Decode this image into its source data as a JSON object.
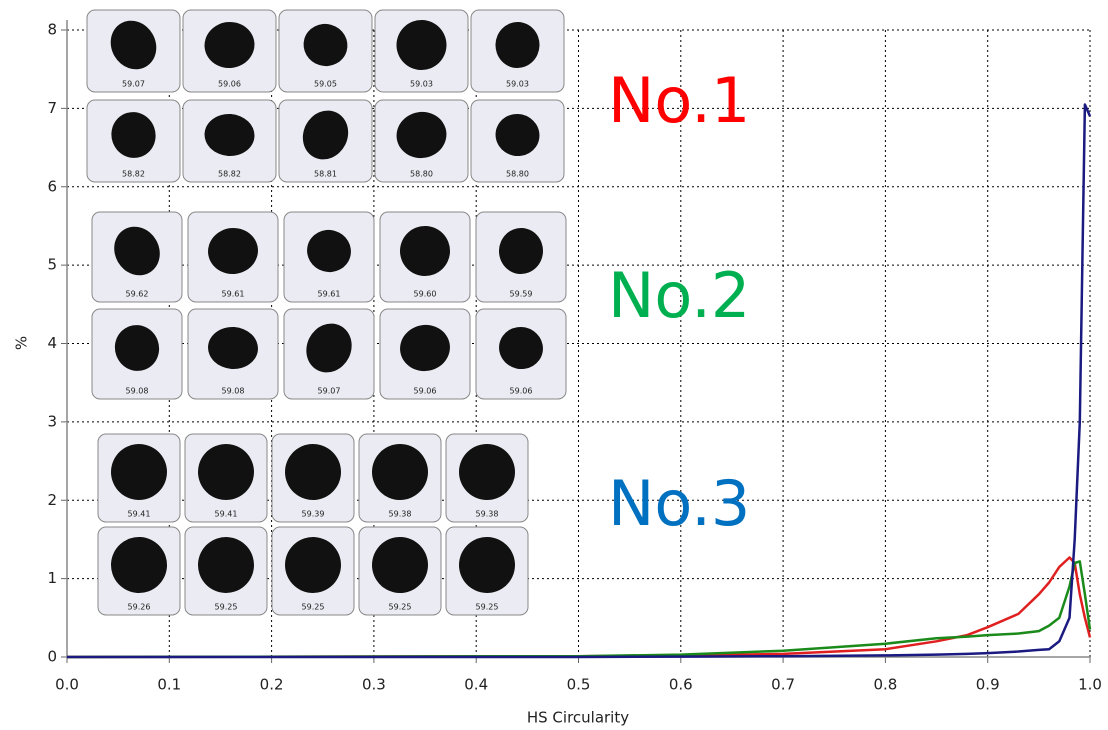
{
  "chart_data": {
    "type": "line",
    "x_label": "HS Circularity",
    "y_label": "%",
    "x": [
      0,
      0.5,
      0.6,
      0.7,
      0.8,
      0.85,
      0.88,
      0.9,
      0.93,
      0.95,
      0.96,
      0.97,
      0.98,
      0.985,
      0.99,
      0.995,
      1.0
    ],
    "series": [
      {
        "name": "No.1",
        "color": "#e02020",
        "label_color": "#ff0000",
        "values": [
          0,
          0.01,
          0.02,
          0.04,
          0.1,
          0.2,
          0.28,
          0.38,
          0.55,
          0.8,
          0.95,
          1.15,
          1.27,
          1.2,
          0.8,
          0.5,
          0.25
        ]
      },
      {
        "name": "No.2",
        "color": "#1a8a1a",
        "label_color": "#00b050",
        "values": [
          0,
          0.01,
          0.03,
          0.08,
          0.17,
          0.24,
          0.26,
          0.28,
          0.3,
          0.33,
          0.4,
          0.5,
          0.9,
          1.2,
          1.22,
          0.8,
          0.35
        ]
      },
      {
        "name": "No.3",
        "color": "#1a1a80",
        "label_color": "#0070c0",
        "values": [
          0,
          0,
          0.005,
          0.01,
          0.02,
          0.03,
          0.04,
          0.05,
          0.07,
          0.09,
          0.1,
          0.2,
          0.5,
          1.5,
          3.0,
          7.05,
          6.9
        ]
      }
    ],
    "xlim": [
      0,
      1.0
    ],
    "ylim": [
      0,
      8
    ],
    "xticks": [
      {
        "value": 0,
        "label": "0.0"
      },
      0.1,
      0.2,
      0.3,
      0.4,
      0.5,
      0.6,
      0.7,
      0.8,
      0.9,
      {
        "value": 1.0,
        "label": "1.0"
      }
    ],
    "yticks": [
      0,
      1,
      2,
      3,
      4,
      5,
      6,
      7,
      8
    ],
    "grid": true,
    "thumbnails": [
      [
        [
          "59.07",
          "59.06",
          "59.05",
          "59.03",
          "59.03"
        ],
        [
          "58.82",
          "58.82",
          "58.81",
          "58.80",
          "58.80"
        ]
      ],
      [
        [
          "59.62",
          "59.61",
          "59.61",
          "59.60",
          "59.59"
        ],
        [
          "59.08",
          "59.08",
          "59.07",
          "59.06",
          "59.06"
        ]
      ],
      [
        [
          "59.41",
          "59.41",
          "59.39",
          "59.38",
          "59.38"
        ],
        [
          "59.26",
          "59.25",
          "59.25",
          "59.25",
          "59.25"
        ]
      ]
    ]
  }
}
